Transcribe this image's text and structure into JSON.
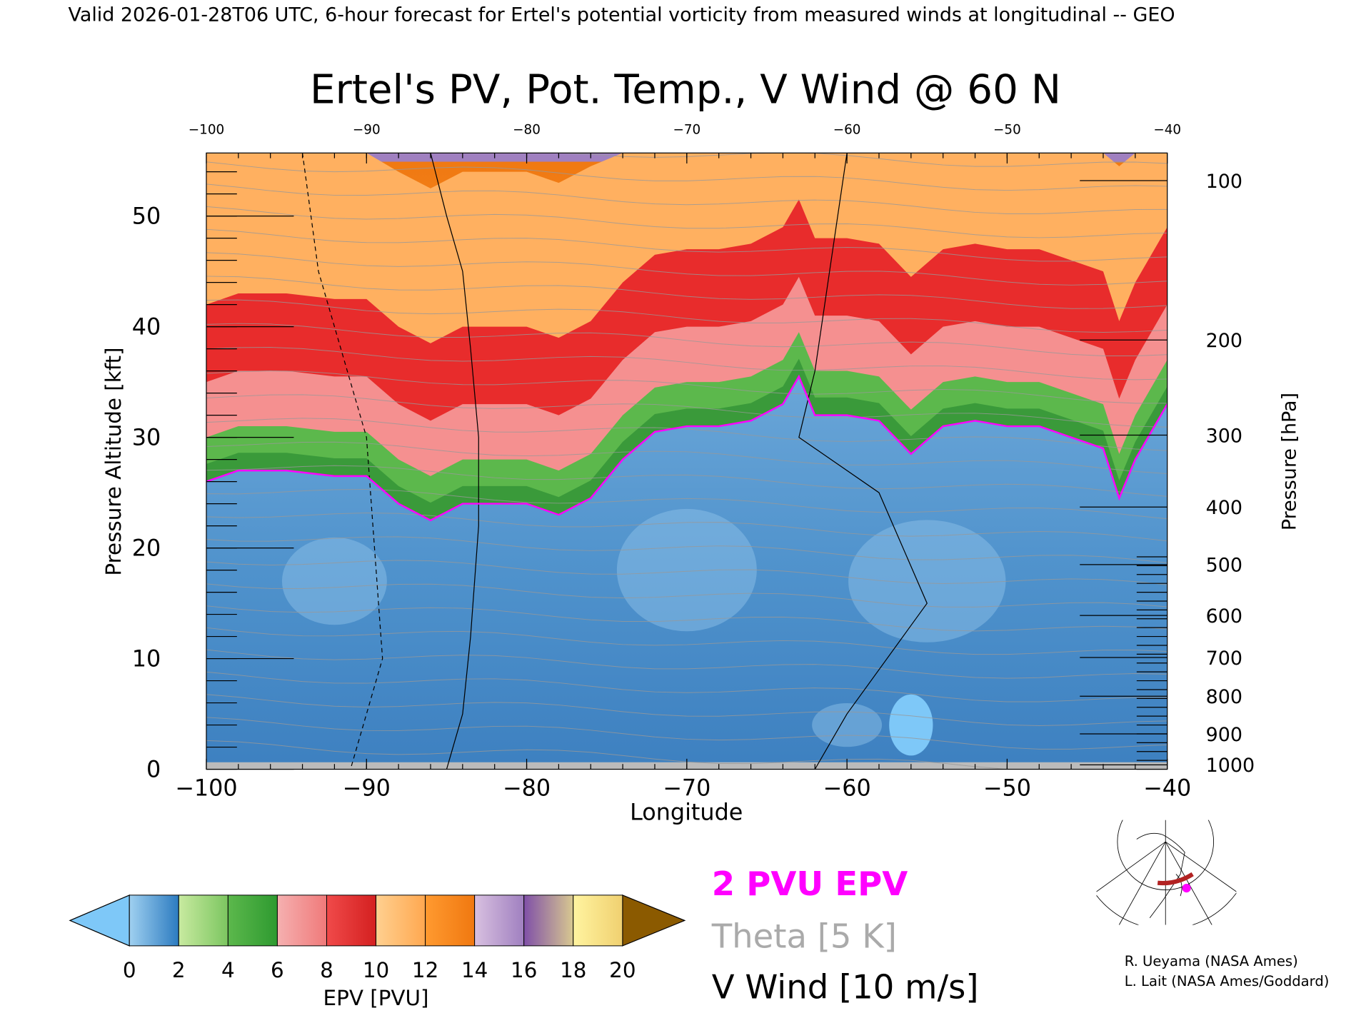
{
  "header": {
    "valid_line": "Valid 2026-01-28T06 UTC, 6-hour forecast for Ertel's potential vorticity from measured winds at longitudinal -- GEO",
    "title": "Ertel's PV, Pot. Temp., V Wind @ 60 N"
  },
  "legend": {
    "pv_label": "2 PVU EPV",
    "theta_label": "Theta [5 K]",
    "wind_label": "V Wind [10 m/s]",
    "pv_color": "#ff00ff",
    "theta_color": "#aaaaaa"
  },
  "credits": {
    "line1": "R. Ueyama (NASA Ames)",
    "line2": "L. Lait (NASA Ames/Goddard)"
  },
  "chart_data": {
    "type": "heatmap",
    "title": "Ertel's PV, Pot. Temp., V Wind @ 60 N",
    "xlabel": "Longitude",
    "ylabel": "Pressure Altitude [kft]",
    "y2label": "Pressure [hPa]",
    "xlim": [
      -100,
      -40
    ],
    "ylim": [
      0,
      55.7
    ],
    "x_ticks": [
      "-100",
      "-90",
      "-80",
      "-70",
      "-60",
      "-50",
      "-40"
    ],
    "x_tick_values": [
      -100,
      -90,
      -80,
      -70,
      -60,
      -50,
      -40
    ],
    "y_ticks": [
      "0",
      "10",
      "20",
      "30",
      "40",
      "50"
    ],
    "y_tick_values": [
      0,
      10,
      20,
      30,
      40,
      50
    ],
    "pressure_ticks": [
      "100",
      "200",
      "300",
      "400",
      "500",
      "600",
      "700",
      "800",
      "900",
      "1000"
    ],
    "pressure_tick_kft": [
      53.2,
      38.8,
      30.2,
      23.7,
      18.5,
      13.9,
      10.1,
      6.6,
      3.2,
      0.4
    ],
    "pv_2pvu_contour": {
      "lon": [
        -100,
        -98,
        -95,
        -92,
        -90,
        -88,
        -86,
        -84,
        -80,
        -78,
        -76,
        -74,
        -72,
        -70,
        -68,
        -66,
        -64,
        -63,
        -62,
        -60,
        -58,
        -56,
        -54,
        -52,
        -50,
        -48,
        -46,
        -44,
        -43,
        -42,
        -40
      ],
      "kft": [
        26,
        27,
        27,
        26.5,
        26.5,
        24,
        22.5,
        24,
        24,
        23,
        24.5,
        28,
        30.5,
        31,
        31,
        31.5,
        33,
        35.5,
        32,
        32,
        31.5,
        28.5,
        31,
        31.5,
        31,
        31,
        30,
        29,
        24.5,
        28,
        33
      ]
    },
    "wind_zero_contour": {
      "lon": [
        -86,
        -85,
        -84,
        -83.5,
        -83,
        -83,
        -83.5,
        -84,
        -85
      ],
      "kft": [
        55.7,
        50,
        45,
        38,
        30,
        22,
        12,
        5,
        0
      ]
    },
    "colorbar": {
      "label": "EPV [PVU]",
      "levels": [
        "0",
        "2",
        "4",
        "6",
        "8",
        "10",
        "12",
        "14",
        "16",
        "18",
        "20"
      ],
      "colors": [
        [
          "#9fd0f0",
          "#2c7bc0"
        ],
        [
          "#c8eaa0",
          "#7cc660"
        ],
        [
          "#5cb84c",
          "#2e9a30"
        ],
        [
          "#f5b0b0",
          "#f07a7a"
        ],
        [
          "#f04a4a",
          "#d42020"
        ],
        [
          "#ffd090",
          "#ffa850"
        ],
        [
          "#ff9a30",
          "#f07810"
        ],
        [
          "#d8c0e0",
          "#a080c0"
        ],
        [
          "#8050a8",
          "#d8c890"
        ],
        [
          "#fff4a0",
          "#f0d070"
        ]
      ],
      "under_color": "#7ec8f8",
      "over_color": "#8b5a00"
    }
  }
}
